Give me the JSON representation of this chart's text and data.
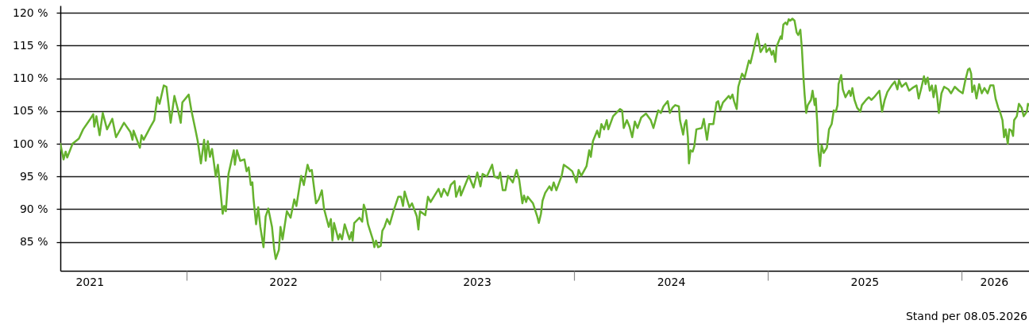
{
  "chart_data": {
    "type": "line",
    "x": [
      "2021-05-08",
      "2021-05-14",
      "2021-05-18",
      "2021-05-21",
      "2021-05-31",
      "2021-06-12",
      "2021-06-20",
      "2021-07-02",
      "2021-07-09",
      "2021-07-11",
      "2021-07-15",
      "2021-07-21",
      "2021-07-27",
      "2021-08-04",
      "2021-08-14",
      "2021-08-21",
      "2021-09-05",
      "2021-09-17",
      "2021-09-21",
      "2021-09-23",
      "2021-10-05",
      "2021-10-08",
      "2021-10-12",
      "2021-10-25",
      "2021-11-01",
      "2021-11-07",
      "2021-11-11",
      "2021-11-19",
      "2021-11-24",
      "2021-12-02",
      "2021-12-09",
      "2021-12-16",
      "2021-12-21",
      "2021-12-24",
      "2022-01-05",
      "2022-01-10",
      "2022-01-18",
      "2022-01-22",
      "2022-01-28",
      "2022-02-03",
      "2022-02-06",
      "2022-02-10",
      "2022-02-14",
      "2022-02-18",
      "2022-02-25",
      "2022-03-01",
      "2022-03-10",
      "2022-03-13",
      "2022-03-16",
      "2022-03-21",
      "2022-03-31",
      "2022-04-02",
      "2022-04-06",
      "2022-04-12",
      "2022-04-20",
      "2022-04-24",
      "2022-04-28",
      "2022-05-02",
      "2022-05-05",
      "2022-05-07",
      "2022-05-12",
      "2022-05-16",
      "2022-05-20",
      "2022-05-26",
      "2022-05-30",
      "2022-06-04",
      "2022-06-11",
      "2022-06-15",
      "2022-06-18",
      "2022-06-24",
      "2022-06-27",
      "2022-07-01",
      "2022-07-09",
      "2022-07-16",
      "2022-07-23",
      "2022-07-27",
      "2022-08-05",
      "2022-08-10",
      "2022-08-17",
      "2022-08-21",
      "2022-08-25",
      "2022-09-02",
      "2022-09-07",
      "2022-09-13",
      "2022-09-17",
      "2022-09-26",
      "2022-09-30",
      "2022-10-03",
      "2022-10-06",
      "2022-10-14",
      "2022-10-17",
      "2022-10-21",
      "2022-10-26",
      "2022-11-04",
      "2022-11-08",
      "2022-11-10",
      "2022-11-13",
      "2022-11-23",
      "2022-11-28",
      "2022-12-01",
      "2022-12-05",
      "2022-12-09",
      "2022-12-18",
      "2022-12-21",
      "2022-12-24",
      "2022-12-28",
      "2023-01-02",
      "2023-01-05",
      "2023-01-09",
      "2023-01-14",
      "2023-01-19",
      "2023-01-26",
      "2023-02-04",
      "2023-02-09",
      "2023-02-13",
      "2023-02-16",
      "2023-02-25",
      "2023-03-02",
      "2023-03-11",
      "2023-03-14",
      "2023-03-17",
      "2023-03-27",
      "2023-04-01",
      "2023-04-06",
      "2023-04-21",
      "2023-04-26",
      "2023-05-01",
      "2023-05-08",
      "2023-05-14",
      "2023-05-21",
      "2023-05-24",
      "2023-05-31",
      "2023-06-02",
      "2023-06-17",
      "2023-06-26",
      "2023-07-03",
      "2023-07-09",
      "2023-07-13",
      "2023-07-21",
      "2023-07-31",
      "2023-08-04",
      "2023-08-12",
      "2023-08-15",
      "2023-08-20",
      "2023-08-25",
      "2023-08-30",
      "2023-09-08",
      "2023-09-15",
      "2023-09-20",
      "2023-09-26",
      "2023-09-29",
      "2023-10-03",
      "2023-10-06",
      "2023-10-16",
      "2023-10-24",
      "2023-10-27",
      "2023-10-31",
      "2023-11-03",
      "2023-11-08",
      "2023-11-16",
      "2023-11-20",
      "2023-11-24",
      "2023-11-29",
      "2023-12-09",
      "2023-12-13",
      "2023-12-23",
      "2023-12-29",
      "2024-01-06",
      "2024-01-10",
      "2024-01-15",
      "2024-01-25",
      "2024-01-30",
      "2024-02-02",
      "2024-02-06",
      "2024-02-14",
      "2024-02-18",
      "2024-02-22",
      "2024-02-27",
      "2024-03-03",
      "2024-03-06",
      "2024-03-15",
      "2024-03-28",
      "2024-04-01",
      "2024-04-04",
      "2024-04-10",
      "2024-04-15",
      "2024-04-20",
      "2024-04-25",
      "2024-04-30",
      "2024-05-07",
      "2024-05-16",
      "2024-05-25",
      "2024-05-30",
      "2024-06-05",
      "2024-06-08",
      "2024-06-13",
      "2024-06-18",
      "2024-06-26",
      "2024-06-30",
      "2024-07-05",
      "2024-07-10",
      "2024-07-17",
      "2024-07-19",
      "2024-07-25",
      "2024-07-28",
      "2024-07-31",
      "2024-08-03",
      "2024-08-05",
      "2024-08-08",
      "2024-08-12",
      "2024-08-15",
      "2024-08-19",
      "2024-08-29",
      "2024-09-02",
      "2024-09-08",
      "2024-09-12",
      "2024-09-20",
      "2024-09-26",
      "2024-09-29",
      "2024-10-03",
      "2024-10-08",
      "2024-10-19",
      "2024-10-22",
      "2024-10-26",
      "2024-10-29",
      "2024-11-03",
      "2024-11-06",
      "2024-11-13",
      "2024-11-18",
      "2024-11-26",
      "2024-11-29",
      "2024-12-08",
      "2024-12-12",
      "2024-12-18",
      "2024-12-27",
      "2024-12-29",
      "2025-01-04",
      "2025-01-08",
      "2025-01-11",
      "2025-01-15",
      "2025-01-17",
      "2025-01-25",
      "2025-01-27",
      "2025-01-30",
      "2025-02-03",
      "2025-02-06",
      "2025-02-09",
      "2025-02-12",
      "2025-02-16",
      "2025-02-20",
      "2025-02-24",
      "2025-02-27",
      "2025-03-03",
      "2025-03-06",
      "2025-03-09",
      "2025-03-11",
      "2025-03-14",
      "2025-03-17",
      "2025-03-23",
      "2025-03-26",
      "2025-03-30",
      "2025-04-01",
      "2025-04-04",
      "2025-04-06",
      "2025-04-09",
      "2025-04-12",
      "2025-04-16",
      "2025-04-22",
      "2025-04-26",
      "2025-05-01",
      "2025-05-05",
      "2025-05-09",
      "2025-05-12",
      "2025-05-14",
      "2025-05-19",
      "2025-05-22",
      "2025-05-27",
      "2025-06-03",
      "2025-06-06",
      "2025-06-09",
      "2025-06-13",
      "2025-06-18",
      "2025-06-24",
      "2025-06-27",
      "2025-07-05",
      "2025-07-10",
      "2025-07-15",
      "2025-07-20",
      "2025-07-30",
      "2025-08-04",
      "2025-08-09",
      "2025-08-14",
      "2025-08-22",
      "2025-08-28",
      "2025-09-02",
      "2025-09-05",
      "2025-09-10",
      "2025-09-18",
      "2025-09-24",
      "2025-09-30",
      "2025-10-08",
      "2025-10-12",
      "2025-10-17",
      "2025-10-22",
      "2025-10-25",
      "2025-10-29",
      "2025-11-02",
      "2025-11-06",
      "2025-11-09",
      "2025-11-13",
      "2025-11-16",
      "2025-11-19",
      "2025-11-24",
      "2025-11-29",
      "2025-12-07",
      "2025-12-12",
      "2025-12-19",
      "2025-12-27",
      "2026-01-03",
      "2026-01-08",
      "2026-01-13",
      "2026-01-16",
      "2026-01-19",
      "2026-01-21",
      "2026-01-25",
      "2026-01-29",
      "2026-02-03",
      "2026-02-08",
      "2026-02-13",
      "2026-02-19",
      "2026-02-24",
      "2026-03-02",
      "2026-03-06",
      "2026-03-11",
      "2026-03-15",
      "2026-03-19",
      "2026-03-22",
      "2026-03-25",
      "2026-03-29",
      "2026-04-01",
      "2026-04-05",
      "2026-04-08",
      "2026-04-10",
      "2026-04-15",
      "2026-04-19",
      "2026-04-24",
      "2026-04-28",
      "2026-05-04",
      "2026-05-06",
      "2026-05-08"
    ],
    "series": [
      {
        "color": "#66b22e",
        "values": [
          100,
          97.6,
          98.8,
          97.9,
          100,
          100.8,
          102.2,
          103.6,
          104.5,
          102.6,
          104.2,
          101.3,
          104.7,
          102.2,
          103.8,
          101.0,
          103.2,
          101.8,
          100.6,
          102.0,
          99.4,
          101.3,
          100.6,
          102.6,
          103.6,
          107.1,
          106.1,
          108.9,
          108.7,
          103.2,
          107.3,
          105.1,
          103.2,
          106.3,
          107.5,
          105.1,
          102.0,
          100.4,
          97.0,
          100.6,
          97.4,
          100.4,
          98.0,
          99.2,
          95.0,
          96.8,
          89.3,
          90.5,
          89.7,
          95.4,
          99.0,
          96.8,
          99.0,
          97.4,
          97.6,
          95.8,
          96.4,
          93.7,
          94.1,
          91.7,
          87.7,
          90.3,
          87.3,
          84.2,
          88.9,
          90.1,
          87.3,
          84.0,
          82.4,
          83.8,
          87.3,
          85.4,
          89.7,
          88.7,
          91.5,
          90.5,
          95.1,
          93.7,
          96.8,
          95.8,
          96.0,
          90.9,
          91.5,
          92.9,
          90.1,
          87.3,
          88.5,
          85.2,
          87.9,
          85.4,
          86.2,
          85.4,
          87.7,
          85.4,
          86.5,
          85.2,
          87.9,
          88.7,
          88.1,
          90.7,
          89.7,
          87.7,
          85.4,
          84.2,
          85.2,
          84.2,
          84.4,
          86.7,
          87.3,
          88.5,
          87.7,
          89.7,
          91.9,
          91.9,
          90.5,
          92.7,
          90.3,
          90.9,
          88.9,
          86.9,
          89.7,
          89.1,
          91.9,
          91.1,
          93.1,
          91.9,
          93.1,
          92.1,
          93.7,
          94.3,
          91.9,
          93.5,
          92.1,
          95.1,
          93.3,
          95.6,
          93.5,
          95.4,
          95.0,
          96.8,
          95.0,
          94.7,
          95.6,
          92.9,
          92.9,
          95.1,
          94.1,
          96.0,
          94.5,
          90.9,
          92.1,
          91.1,
          91.9,
          90.9,
          88.9,
          87.9,
          89.3,
          91.3,
          92.5,
          93.5,
          92.9,
          94.1,
          92.9,
          95.1,
          96.8,
          96.2,
          95.8,
          94.1,
          96.0,
          95.1,
          96.6,
          99.0,
          98.0,
          100.4,
          102.0,
          101.0,
          103.0,
          102.2,
          103.6,
          102.2,
          104.2,
          105.3,
          105.1,
          102.4,
          103.6,
          102.6,
          101.0,
          103.4,
          102.4,
          104.0,
          104.6,
          103.6,
          102.4,
          104.2,
          105.1,
          104.7,
          105.7,
          106.5,
          104.7,
          105.5,
          105.9,
          105.7,
          103.6,
          101.4,
          103.0,
          103.6,
          101.0,
          97.0,
          99.0,
          98.8,
          99.6,
          102.2,
          102.4,
          103.8,
          100.6,
          103.0,
          103.0,
          106.3,
          106.5,
          105.1,
          106.3,
          107.3,
          106.9,
          107.5,
          106.5,
          105.3,
          108.7,
          110.7,
          110.1,
          112.7,
          112.3,
          115.4,
          116.8,
          114.0,
          115.2,
          114.0,
          114.6,
          113.6,
          114.2,
          112.5,
          114.8,
          116.4,
          116.0,
          118.2,
          118.5,
          118.2,
          119.0,
          118.8,
          119.1,
          118.8,
          117.0,
          116.6,
          117.4,
          114.4,
          109.9,
          107.5,
          104.7,
          105.9,
          106.7,
          108.1,
          105.9,
          106.9,
          103.0,
          99.0,
          96.6,
          99.8,
          98.6,
          99.4,
          102.2,
          103.0,
          105.1,
          104.9,
          105.9,
          109.1,
          110.5,
          108.3,
          107.1,
          108.1,
          107.3,
          108.5,
          106.7,
          105.5,
          104.9,
          105.9,
          106.7,
          107.1,
          106.7,
          107.1,
          108.1,
          104.9,
          106.7,
          107.9,
          108.9,
          109.5,
          108.3,
          109.7,
          108.7,
          109.3,
          108.1,
          108.5,
          108.9,
          106.9,
          108.5,
          110.3,
          109.1,
          110.1,
          108.1,
          108.9,
          107.1,
          108.9,
          107.1,
          104.7,
          107.7,
          108.7,
          108.3,
          107.7,
          108.7,
          108.1,
          107.7,
          109.7,
          111.3,
          111.5,
          110.7,
          107.9,
          108.9,
          106.9,
          109.1,
          107.7,
          108.5,
          107.7,
          108.9,
          108.9,
          106.9,
          105.5,
          104.7,
          103.6,
          101.0,
          102.2,
          100.0,
          102.2,
          102.0,
          101.2,
          103.6,
          104.2,
          106.1,
          105.5,
          104.2,
          104.9,
          106.1,
          105.9
        ]
      }
    ],
    "xlim": [
      "2021-05-08",
      "2026-05-08"
    ],
    "xticks": [
      {
        "value": "2021-07-02",
        "label": "2021"
      },
      {
        "value": "2022-01-01",
        "label": null
      },
      {
        "value": "2022-07-02",
        "label": "2022"
      },
      {
        "value": "2023-01-01",
        "label": null
      },
      {
        "value": "2023-07-02",
        "label": "2023"
      },
      {
        "value": "2024-01-01",
        "label": null
      },
      {
        "value": "2024-07-02",
        "label": "2024"
      },
      {
        "value": "2025-01-01",
        "label": null
      },
      {
        "value": "2025-07-02",
        "label": "2025"
      },
      {
        "value": "2026-01-01",
        "label": null
      },
      {
        "value": "2026-03-03",
        "label": "2026"
      }
    ],
    "ylim": [
      80.6,
      121.1
    ],
    "yticks": [
      {
        "value": 85,
        "label": "85 %"
      },
      {
        "value": 90,
        "label": "90 %"
      },
      {
        "value": 95,
        "label": "95 %"
      },
      {
        "value": 100,
        "label": "100 %"
      },
      {
        "value": 105,
        "label": "105 %"
      },
      {
        "value": 110,
        "label": "110 %"
      },
      {
        "value": 115,
        "label": "115 %"
      },
      {
        "value": 120,
        "label": "120 %"
      }
    ],
    "grid": "y",
    "annotations": [
      "Stand per 08.05.2026"
    ]
  }
}
